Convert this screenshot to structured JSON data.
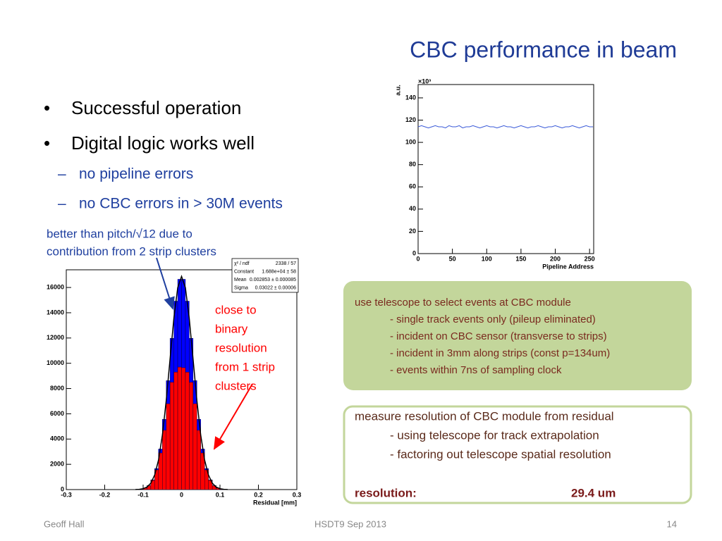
{
  "title": "CBC performance in beam",
  "bullets": [
    "Successful operation",
    "Digital logic works well"
  ],
  "sub_bullets": [
    "no pipeline errors",
    "no CBC errors in > 30M events"
  ],
  "annotation_blue": [
    "better than pitch/√12 due to",
    "contribution from 2 strip clusters"
  ],
  "annotation_red": [
    "close to",
    "binary",
    "resolution",
    "from 1 strip",
    "clusters"
  ],
  "box1": {
    "heading": "use telescope to select events at CBC module",
    "items": [
      "- single track events only (pileup eliminated)",
      "- incident on CBC sensor (transverse to strips)",
      "- incident in 3mm along strips (const p=134um)",
      "- events within 7ns of sampling clock"
    ]
  },
  "box2": {
    "heading": "measure resolution of CBC module from residual",
    "items": [
      "- using telescope for track extrapolation",
      "- factoring out telescope spatial resolution"
    ],
    "result_label": "resolution:",
    "result_value": "29.4 um"
  },
  "footer": {
    "left": "Geoff Hall",
    "center": "HSDT9 Sep 2013",
    "right": "14"
  },
  "chart_data": [
    {
      "type": "line",
      "ylabel": "a.u.",
      "y_multiplier": "×10³",
      "xlabel": "Pipeline Address",
      "x": [
        0,
        5,
        10,
        15,
        20,
        25,
        30,
        35,
        40,
        45,
        50,
        55,
        60,
        65,
        70,
        75,
        80,
        85,
        90,
        95,
        100,
        105,
        110,
        115,
        120,
        125,
        130,
        135,
        140,
        145,
        150,
        155,
        160,
        165,
        170,
        175,
        180,
        185,
        190,
        195,
        200,
        205,
        210,
        215,
        220,
        225,
        230,
        235,
        240,
        245,
        250,
        255
      ],
      "series": [
        {
          "color": "#3a5ad8",
          "values": [
            114,
            115,
            114,
            113,
            114,
            115,
            114,
            114,
            113,
            115,
            114,
            114,
            115,
            113,
            114,
            114,
            115,
            114,
            113,
            114,
            115,
            114,
            114,
            113,
            114,
            115,
            114,
            114,
            113,
            114,
            115,
            114,
            113,
            114,
            114,
            115,
            114,
            113,
            114,
            114,
            115,
            114,
            113,
            114,
            114,
            115,
            114,
            113,
            114,
            115,
            114,
            114
          ]
        }
      ],
      "xlim": [
        0,
        256
      ],
      "xticks": [
        0,
        50,
        100,
        150,
        200,
        250
      ],
      "ylim": [
        0,
        152
      ],
      "yticks": [
        0,
        20,
        40,
        60,
        80,
        100,
        120,
        140
      ]
    },
    {
      "type": "histogram",
      "xlabel": "Residual [mm]",
      "bins": [
        -0.12,
        -0.11,
        -0.1,
        -0.09,
        -0.08,
        -0.07,
        -0.06,
        -0.05,
        -0.04,
        -0.03,
        -0.02,
        -0.01,
        0,
        0.01,
        0.02,
        0.03,
        0.04,
        0.05,
        0.06,
        0.07,
        0.08,
        0.09,
        0.1,
        0.11,
        0.12
      ],
      "series": [
        {
          "color": "#0000ff",
          "values": [
            12,
            40,
            120,
            321,
            773,
            1666,
            3210,
            5565,
            8625,
            11980,
            14920,
            16650,
            16650,
            14920,
            11980,
            8625,
            5565,
            3210,
            1666,
            773,
            321,
            120,
            40,
            12
          ]
        },
        {
          "color": "#ff0000",
          "values": [
            12,
            40,
            118,
            310,
            740,
            1560,
            2900,
            4700,
            6800,
            8500,
            9300,
            9700,
            9650,
            9300,
            8500,
            6800,
            4700,
            2900,
            1560,
            740,
            310,
            118,
            40,
            12
          ]
        }
      ],
      "fit": {
        "color": "#000000",
        "x": [
          -0.12,
          -0.11,
          -0.1,
          -0.09,
          -0.08,
          -0.07,
          -0.06,
          -0.05,
          -0.04,
          -0.03,
          -0.02,
          -0.01,
          0,
          0.01,
          0.02,
          0.03,
          0.04,
          0.05,
          0.06,
          0.07,
          0.08,
          0.09,
          0.1,
          0.11,
          0.12
        ],
        "values": [
          6,
          22,
          70,
          199,
          504,
          1150,
          2340,
          4285,
          7020,
          10310,
          13560,
          15980,
          16880,
          15980,
          13560,
          10310,
          7020,
          4285,
          2340,
          1150,
          504,
          199,
          70,
          22,
          6
        ]
      },
      "stats": [
        [
          "χ² / ndf",
          "2338 / 57"
        ],
        [
          "Constant",
          "1.688e+04 ± 58"
        ],
        [
          "Mean",
          "0.002853 ± 0.000085"
        ],
        [
          "Sigma",
          "0.03022 ± 0.00006"
        ]
      ],
      "xlim": [
        -0.3,
        0.3
      ],
      "xticks": [
        -0.3,
        -0.2,
        -0.1,
        0,
        0.1,
        0.2,
        0.3
      ],
      "ylim": [
        0,
        17400
      ],
      "yticks": [
        0,
        2000,
        4000,
        6000,
        8000,
        10000,
        12000,
        14000,
        16000
      ]
    }
  ]
}
